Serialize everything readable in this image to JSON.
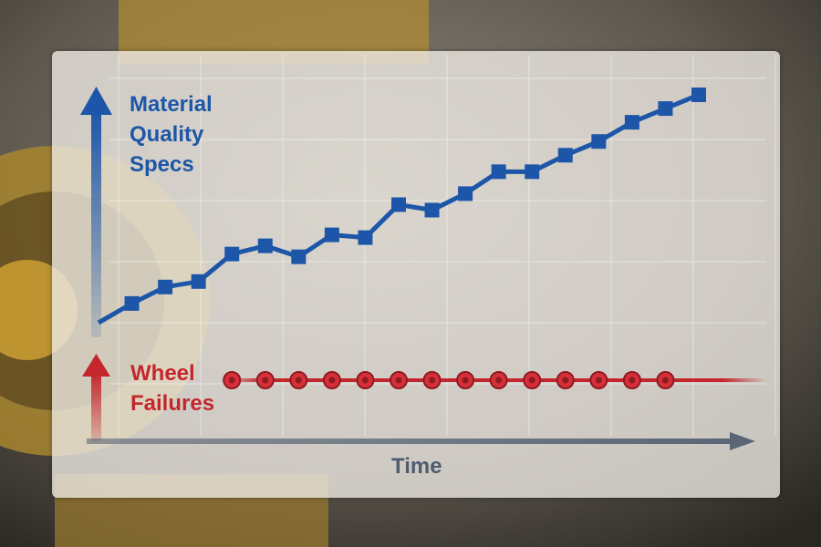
{
  "chart_data": {
    "type": "line",
    "title": "",
    "xlabel": "Time",
    "y_axes": {
      "upper": "Material Quality Specs",
      "lower": "Wheel Failures"
    },
    "labels": {
      "quality": [
        "Material",
        "Quality",
        "Specs"
      ],
      "failures": [
        "Wheel",
        "Failures"
      ]
    },
    "grid": true,
    "series": [
      {
        "name": "Material Quality Specs",
        "color": "#1d56a8",
        "marker": "square",
        "x": [
          0,
          1,
          2,
          3,
          4,
          5,
          6,
          7,
          8,
          9,
          10,
          11,
          12,
          13,
          14,
          15,
          16,
          17,
          18
        ],
        "y": [
          0.3,
          1.0,
          1.6,
          1.8,
          2.8,
          3.1,
          2.7,
          3.5,
          3.4,
          4.6,
          4.4,
          5.0,
          5.8,
          5.8,
          6.4,
          6.9,
          7.6,
          8.1,
          8.6
        ]
      },
      {
        "name": "Wheel Failures",
        "color": "#c4262e",
        "marker": "circle",
        "x": [
          4,
          5,
          6,
          7,
          8,
          9,
          10,
          11,
          12,
          13,
          14,
          15,
          16,
          17
        ],
        "y": [
          1,
          1,
          1,
          1,
          1,
          1,
          1,
          1,
          1,
          1,
          1,
          1,
          1,
          1
        ]
      }
    ]
  }
}
